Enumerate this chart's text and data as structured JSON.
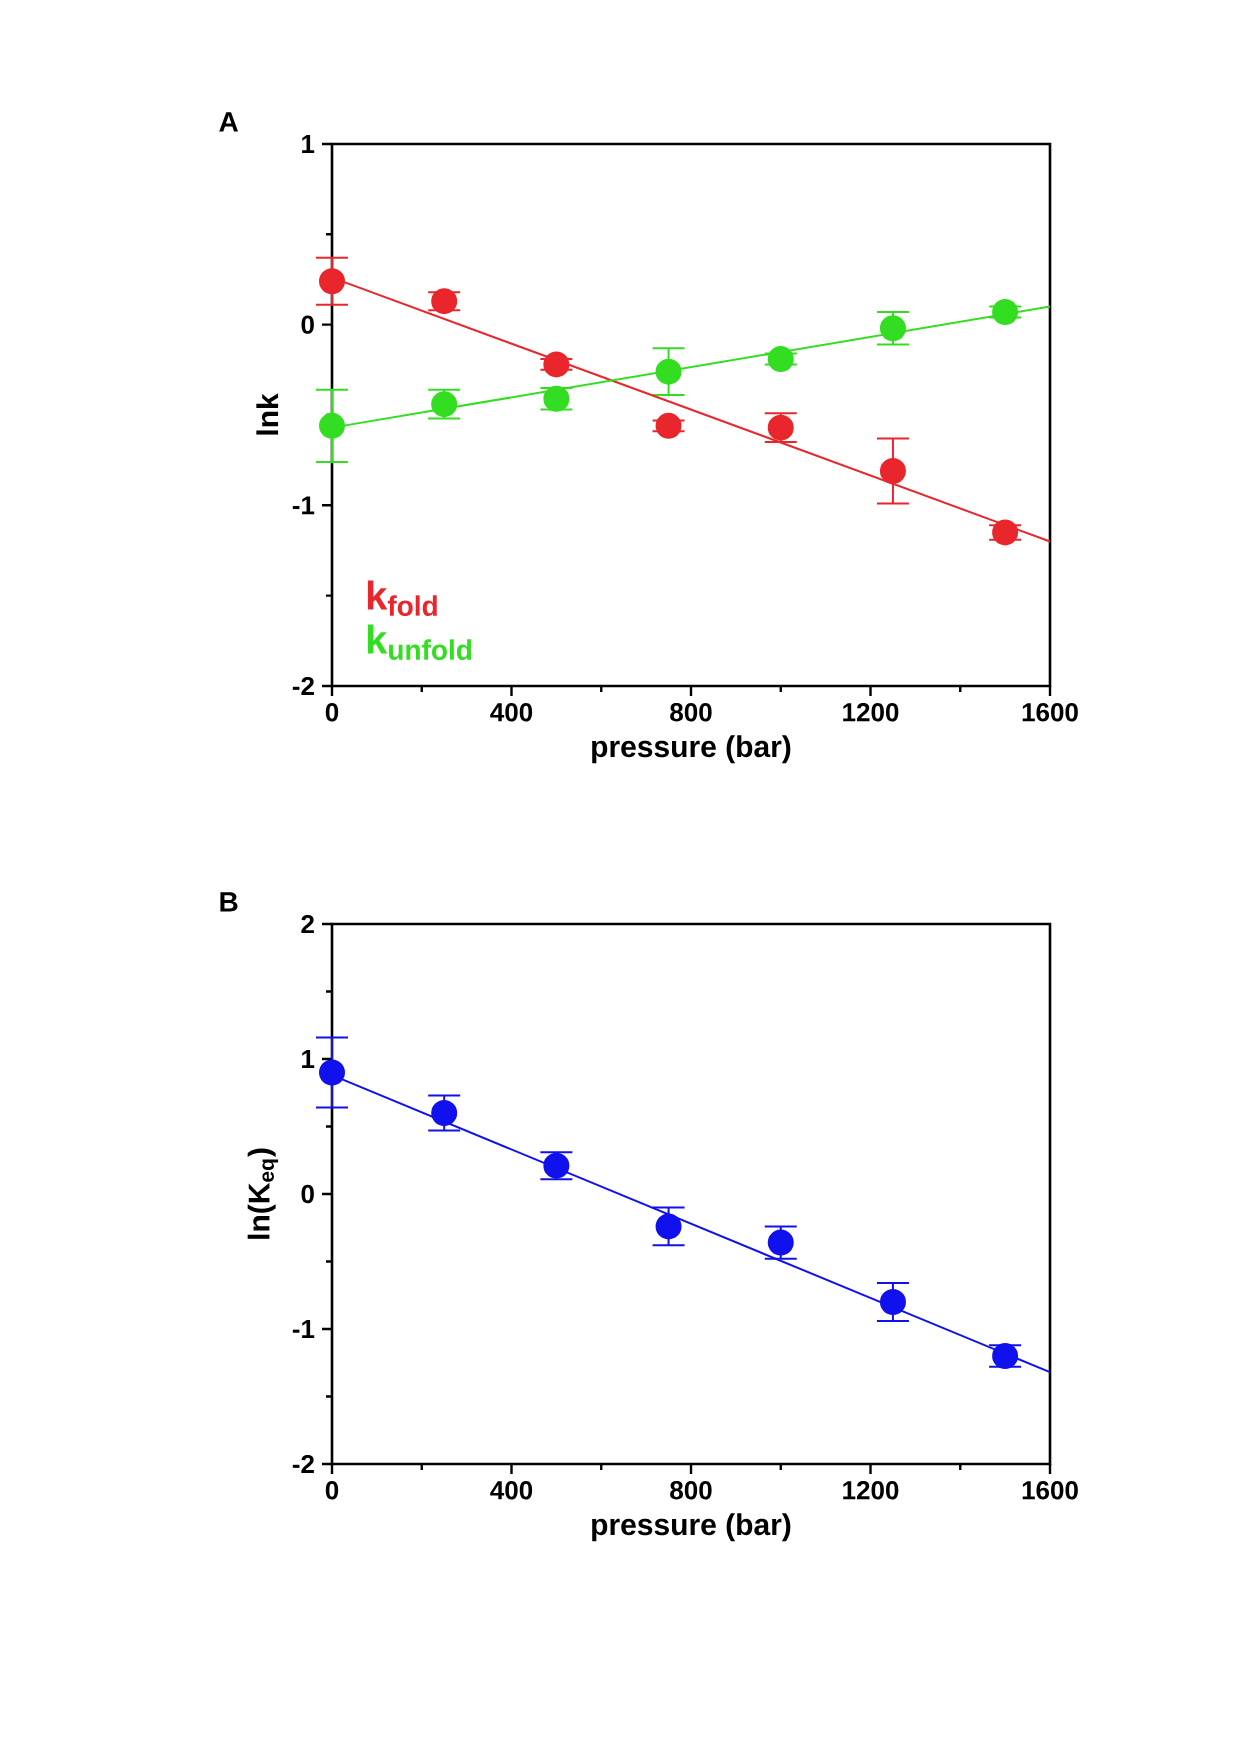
{
  "chart_data": [
    {
      "type": "scatter",
      "title": "A",
      "xlabel": "pressure (bar)",
      "ylabel": "lnk",
      "xlim": [
        0,
        1600
      ],
      "ylim": [
        -2,
        1
      ],
      "xticks": [
        0,
        400,
        800,
        1200,
        1600
      ],
      "yticks": [
        -2,
        -1,
        0,
        1
      ],
      "legend": "bottom left",
      "grid": false,
      "series": [
        {
          "name": "k$_{fold}$",
          "color": "#e8262b",
          "marker": "circle",
          "x": [
            0,
            250,
            500,
            750,
            1000,
            1250,
            1500
          ],
          "values": [
            0.24,
            0.13,
            -0.22,
            -0.56,
            -0.57,
            -0.81,
            -1.15
          ],
          "errors": [
            0.13,
            0.05,
            0.03,
            0.03,
            0.08,
            0.18,
            0.04
          ]
        },
        {
          "name": "k$_{unfold}$",
          "color": "#33dd22",
          "marker": "circle",
          "x": [
            0,
            250,
            500,
            750,
            1000,
            1250,
            1500
          ],
          "values": [
            -0.56,
            -0.44,
            -0.41,
            -0.26,
            -0.19,
            -0.02,
            0.07
          ],
          "errors": [
            0.2,
            0.08,
            0.06,
            0.13,
            0.03,
            0.09,
            0.03
          ]
        },
        {
          "type": "line",
          "color": "#e8262b",
          "marker": "none",
          "x": [
            0,
            1600
          ],
          "values": [
            0.26,
            -1.2
          ]
        },
        {
          "type": "line",
          "color": "#33dd22",
          "marker": "none",
          "x": [
            0,
            1600
          ],
          "values": [
            -0.57,
            0.1
          ]
        }
      ]
    },
    {
      "type": "scatter",
      "title": "B",
      "xlabel": "pressure (bar)",
      "ylabel": "ln(K$_{eq}$)",
      "xlim": [
        0,
        1600
      ],
      "ylim": [
        -2,
        2
      ],
      "xticks": [
        0,
        400,
        800,
        1200,
        1600
      ],
      "yticks": [
        -2,
        -1,
        0,
        1,
        2
      ],
      "grid": false,
      "series": [
        {
          "color": "#1111ee",
          "marker": "circle",
          "x": [
            0,
            250,
            500,
            750,
            1000,
            1250,
            1500
          ],
          "values": [
            0.9,
            0.6,
            0.21,
            -0.24,
            -0.36,
            -0.8,
            -1.2
          ],
          "errors": [
            0.26,
            0.13,
            0.1,
            0.14,
            0.12,
            0.14,
            0.08
          ]
        },
        {
          "type": "line",
          "color": "#1111ee",
          "marker": "none",
          "x": [
            0,
            1600
          ],
          "values": [
            0.88,
            -1.32
          ]
        }
      ]
    }
  ]
}
